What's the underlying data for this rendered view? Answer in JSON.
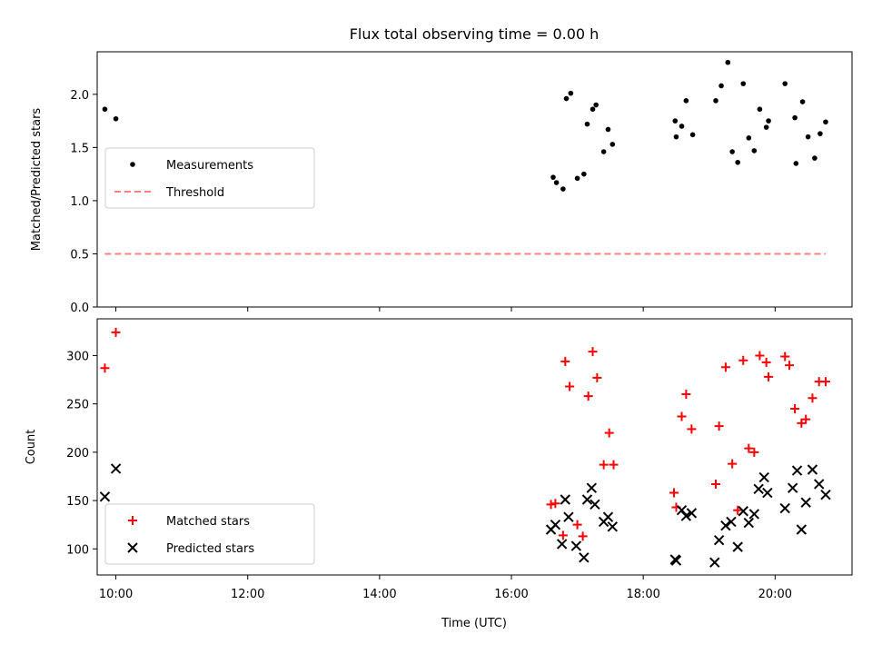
{
  "chart_data": {
    "title": "Flux total observing time = 0.00 h",
    "xlabel": "Time (UTC)",
    "x_unit": "hours UTC",
    "xlim": [
      "09:43",
      "21:10"
    ],
    "x_ticks": [
      {
        "value": "10:00",
        "label": "10:00"
      },
      {
        "value": "12:00",
        "label": "12:00"
      },
      {
        "value": "14:00",
        "label": "14:00"
      },
      {
        "value": "16:00",
        "label": "16:00"
      },
      {
        "value": "18:00",
        "label": "18:00"
      },
      {
        "value": "20:00",
        "label": "20:00"
      }
    ],
    "panels": [
      {
        "id": "ratio",
        "type": "scatter",
        "ylabel": "Matched/Predicted stars",
        "ylim": [
          0,
          2.4
        ],
        "y_ticks": [
          0.0,
          0.5,
          1.0,
          1.5,
          2.0
        ],
        "y_tick_labels": [
          "0.0",
          "0.5",
          "1.0",
          "1.5",
          "2.0"
        ],
        "legend": {
          "position": "center-left"
        },
        "series": [
          {
            "name": "Measurements",
            "marker": "dot",
            "color": "#000000",
            "points": [
              [
                "09:50",
                1.86
              ],
              [
                "10:00",
                1.77
              ],
              [
                "16:38",
                1.22
              ],
              [
                "16:41",
                1.17
              ],
              [
                "16:47",
                1.11
              ],
              [
                "16:50",
                1.96
              ],
              [
                "16:54",
                2.01
              ],
              [
                "17:00",
                1.21
              ],
              [
                "17:06",
                1.25
              ],
              [
                "17:09",
                1.72
              ],
              [
                "17:14",
                1.86
              ],
              [
                "17:17",
                1.9
              ],
              [
                "17:24",
                1.46
              ],
              [
                "17:28",
                1.67
              ],
              [
                "17:32",
                1.53
              ],
              [
                "18:29",
                1.75
              ],
              [
                "18:30",
                1.6
              ],
              [
                "18:35",
                1.7
              ],
              [
                "18:39",
                1.94
              ],
              [
                "18:45",
                1.62
              ],
              [
                "19:06",
                1.94
              ],
              [
                "19:11",
                2.08
              ],
              [
                "19:17",
                2.3
              ],
              [
                "19:21",
                1.46
              ],
              [
                "19:26",
                1.36
              ],
              [
                "19:31",
                2.1
              ],
              [
                "19:36",
                1.59
              ],
              [
                "19:41",
                1.47
              ],
              [
                "19:46",
                1.86
              ],
              [
                "19:52",
                1.69
              ],
              [
                "19:54",
                1.75
              ],
              [
                "20:09",
                2.1
              ],
              [
                "20:18",
                1.78
              ],
              [
                "20:19",
                1.35
              ],
              [
                "20:25",
                1.93
              ],
              [
                "20:30",
                1.6
              ],
              [
                "20:36",
                1.4
              ],
              [
                "20:41",
                1.63
              ],
              [
                "20:46",
                1.74
              ]
            ]
          },
          {
            "name": "Threshold",
            "marker": "dashed-line",
            "color": "#ff7f7f",
            "points": [
              [
                "09:50",
                0.5
              ],
              [
                "20:46",
                0.5
              ]
            ]
          }
        ]
      },
      {
        "id": "counts",
        "type": "scatter",
        "ylabel": "Count",
        "ylim": [
          73,
          338
        ],
        "y_ticks": [
          100,
          150,
          200,
          250,
          300
        ],
        "y_tick_labels": [
          "100",
          "150",
          "200",
          "250",
          "300"
        ],
        "legend": {
          "position": "bottom-left"
        },
        "series": [
          {
            "name": "Matched stars",
            "marker": "plus",
            "color": "#ff0000",
            "points": [
              [
                "09:50",
                287
              ],
              [
                "10:00",
                324
              ],
              [
                "16:36",
                146
              ],
              [
                "16:40",
                147
              ],
              [
                "16:47",
                114
              ],
              [
                "16:49",
                294
              ],
              [
                "16:53",
                268
              ],
              [
                "17:00",
                125
              ],
              [
                "17:05",
                113
              ],
              [
                "17:10",
                258
              ],
              [
                "17:14",
                304
              ],
              [
                "17:18",
                277
              ],
              [
                "17:24",
                187
              ],
              [
                "17:29",
                220
              ],
              [
                "17:33",
                187
              ],
              [
                "18:28",
                158
              ],
              [
                "18:30",
                143
              ],
              [
                "18:35",
                237
              ],
              [
                "18:39",
                260
              ],
              [
                "18:44",
                224
              ],
              [
                "19:06",
                167
              ],
              [
                "19:09",
                227
              ],
              [
                "19:15",
                288
              ],
              [
                "19:21",
                188
              ],
              [
                "19:26",
                140
              ],
              [
                "19:31",
                295
              ],
              [
                "19:36",
                204
              ],
              [
                "19:41",
                200
              ],
              [
                "19:46",
                300
              ],
              [
                "19:52",
                293
              ],
              [
                "19:54",
                278
              ],
              [
                "20:09",
                299
              ],
              [
                "20:13",
                290
              ],
              [
                "20:18",
                245
              ],
              [
                "20:24",
                230
              ],
              [
                "20:28",
                234
              ],
              [
                "20:34",
                256
              ],
              [
                "20:40",
                273
              ],
              [
                "20:46",
                273
              ]
            ]
          },
          {
            "name": "Predicted stars",
            "marker": "x",
            "color": "#000000",
            "points": [
              [
                "09:50",
                154
              ],
              [
                "10:00",
                183
              ],
              [
                "16:36",
                120
              ],
              [
                "16:40",
                125
              ],
              [
                "16:46",
                105
              ],
              [
                "16:49",
                151
              ],
              [
                "16:52",
                133
              ],
              [
                "16:59",
                103
              ],
              [
                "17:06",
                91
              ],
              [
                "17:09",
                151
              ],
              [
                "17:13",
                163
              ],
              [
                "17:16",
                146
              ],
              [
                "17:24",
                128
              ],
              [
                "17:28",
                133
              ],
              [
                "17:32",
                123
              ],
              [
                "18:29",
                89
              ],
              [
                "18:30",
                88
              ],
              [
                "18:35",
                140
              ],
              [
                "18:39",
                134
              ],
              [
                "18:44",
                137
              ],
              [
                "19:05",
                86
              ],
              [
                "19:09",
                109
              ],
              [
                "19:15",
                124
              ],
              [
                "19:20",
                128
              ],
              [
                "19:26",
                102
              ],
              [
                "19:31",
                139
              ],
              [
                "19:36",
                127
              ],
              [
                "19:41",
                136
              ],
              [
                "19:45",
                162
              ],
              [
                "19:50",
                174
              ],
              [
                "19:53",
                158
              ],
              [
                "20:09",
                142
              ],
              [
                "20:16",
                163
              ],
              [
                "20:20",
                181
              ],
              [
                "20:24",
                120
              ],
              [
                "20:28",
                148
              ],
              [
                "20:34",
                182
              ],
              [
                "20:40",
                167
              ],
              [
                "20:46",
                156
              ]
            ]
          }
        ]
      }
    ]
  }
}
